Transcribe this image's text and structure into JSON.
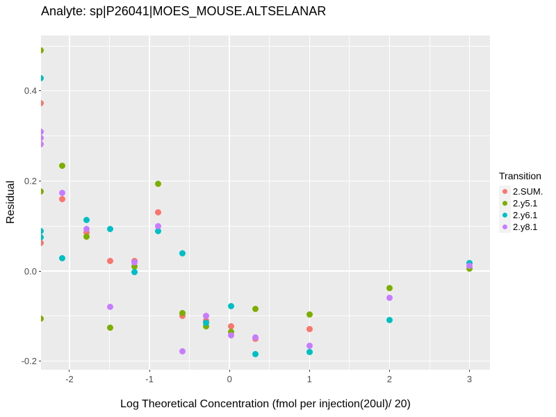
{
  "chart_data": {
    "type": "scatter",
    "title": "Analyte: sp|P26041|MOES_MOUSE.ALTSELANAR",
    "xlabel": "Log Theoretical Concentration (fmol per injection(20ul)/ 20)",
    "ylabel": "Residual",
    "xlim": [
      -2.356,
      3.256
    ],
    "ylim": [
      -0.219,
      0.523
    ],
    "x_major_ticks": [
      -2,
      -1,
      0,
      1,
      2,
      3
    ],
    "x_tick_labels": [
      "-2",
      "-1",
      "0",
      "1",
      "2",
      "3"
    ],
    "x_minor_ticks": [
      -1.5,
      -0.5,
      0.5,
      1.5,
      2.5
    ],
    "y_major_ticks": [
      -0.2,
      0.0,
      0.2,
      0.4
    ],
    "y_tick_labels": [
      "-0.2",
      "0.0",
      "0.2",
      "0.4"
    ],
    "y_minor_ticks": [
      -0.1,
      0.1,
      0.3,
      0.5
    ],
    "grid": true,
    "panel_bg": "#EBEBEB",
    "grid_color": "#FFFFFF",
    "legend_title": "Transition",
    "legend_position": "right",
    "series": [
      {
        "name": "2.SUM.",
        "color": "#F8766D",
        "points": [
          [
            -2.36,
            0.373
          ],
          [
            -2.36,
            0.062
          ],
          [
            -2.09,
            0.159
          ],
          [
            -1.79,
            0.085
          ],
          [
            -1.49,
            0.022
          ],
          [
            -1.19,
            0.023
          ],
          [
            -0.89,
            0.13
          ],
          [
            -0.59,
            -0.1
          ],
          [
            -0.29,
            -0.11
          ],
          [
            0.02,
            -0.122
          ],
          [
            0.32,
            -0.151
          ],
          [
            1.0,
            -0.129
          ]
        ]
      },
      {
        "name": "2.y5.1",
        "color": "#7CAE00",
        "points": [
          [
            -2.36,
            0.49
          ],
          [
            -2.36,
            0.177
          ],
          [
            -2.36,
            -0.106
          ],
          [
            -2.09,
            0.234
          ],
          [
            -1.79,
            0.077
          ],
          [
            -1.49,
            -0.126
          ],
          [
            -1.19,
            0.01
          ],
          [
            -0.89,
            0.194
          ],
          [
            -0.59,
            -0.093
          ],
          [
            -0.29,
            -0.122
          ],
          [
            0.02,
            -0.135
          ],
          [
            0.32,
            -0.084
          ],
          [
            1.0,
            -0.097
          ],
          [
            2.0,
            -0.037
          ],
          [
            3.0,
            0.005
          ]
        ]
      },
      {
        "name": "2.y6.1",
        "color": "#00BFC4",
        "points": [
          [
            -2.36,
            0.428
          ],
          [
            -2.36,
            0.089
          ],
          [
            -2.36,
            0.075
          ],
          [
            -2.09,
            0.029
          ],
          [
            -1.79,
            0.114
          ],
          [
            -1.49,
            0.094
          ],
          [
            -1.19,
            -0.003
          ],
          [
            -0.89,
            0.089
          ],
          [
            -0.59,
            0.039
          ],
          [
            -0.29,
            -0.115
          ],
          [
            0.02,
            -0.078
          ],
          [
            0.32,
            -0.185
          ],
          [
            1.0,
            -0.179
          ],
          [
            2.0,
            -0.108
          ],
          [
            3.0,
            0.018
          ]
        ]
      },
      {
        "name": "2.y8.1",
        "color": "#C77CFF",
        "points": [
          [
            -2.36,
            0.31
          ],
          [
            -2.36,
            0.295
          ],
          [
            -2.36,
            0.281
          ],
          [
            -2.09,
            0.173
          ],
          [
            -1.79,
            0.093
          ],
          [
            -1.49,
            -0.08
          ],
          [
            -1.19,
            0.02
          ],
          [
            -0.89,
            0.1
          ],
          [
            -0.59,
            -0.178
          ],
          [
            -0.29,
            -0.099
          ],
          [
            0.02,
            -0.142
          ],
          [
            0.32,
            -0.148
          ],
          [
            1.0,
            -0.166
          ],
          [
            2.0,
            -0.06
          ],
          [
            3.0,
            0.011
          ]
        ]
      }
    ]
  }
}
